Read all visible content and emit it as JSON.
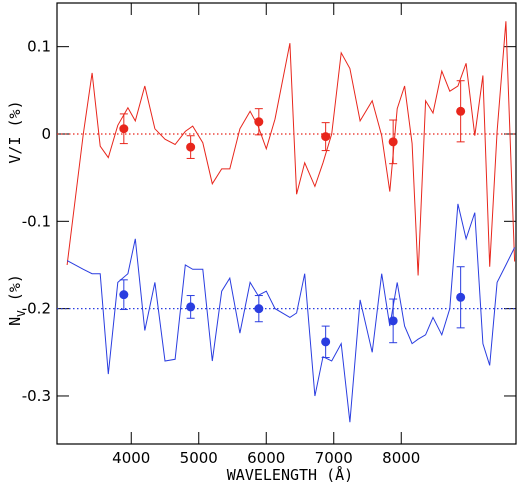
{
  "chart_data": {
    "type": "line",
    "xlabel": "WAVELENGTH (Å)",
    "ylabels": [
      {
        "text": "V/I (%)"
      },
      {
        "text": "N",
        "sub": "V",
        "rest": " (%)"
      }
    ],
    "xlim": [
      2900,
      9700
    ],
    "ylim": [
      -0.355,
      0.15
    ],
    "xticks": [
      4000,
      5000,
      6000,
      7000,
      8000
    ],
    "yticks": [
      0.1,
      0,
      -0.1,
      -0.2,
      -0.3
    ],
    "x": [
      3050,
      3290,
      3420,
      3540,
      3660,
      3800,
      3950,
      4060,
      4200,
      4350,
      4500,
      4650,
      4800,
      4910,
      5060,
      5200,
      5340,
      5460,
      5610,
      5760,
      5880,
      6000,
      6130,
      6350,
      6450,
      6570,
      6720,
      6840,
      6970,
      7110,
      7240,
      7390,
      7570,
      7710,
      7830,
      7940,
      8050,
      8160,
      8250,
      8360,
      8470,
      8600,
      8720,
      8840,
      8960,
      9090,
      9210,
      9310,
      9420,
      9550,
      9680
    ],
    "series": [
      {
        "color": "#e8261c",
        "values": [
          -0.15,
          0,
          0.07,
          -0.014,
          -0.027,
          0.01,
          0.03,
          0.015,
          0.055,
          0.006,
          -0.006,
          -0.012,
          0.003,
          0.009,
          -0.01,
          -0.057,
          -0.04,
          -0.04,
          0.006,
          0.026,
          0.009,
          -0.017,
          0.017,
          0.104,
          -0.069,
          -0.033,
          -0.06,
          -0.033,
          0,
          0.093,
          0.075,
          0.015,
          0.038,
          -0.002,
          -0.066,
          0.029,
          0.055,
          -0.011,
          -0.162,
          0.038,
          0.024,
          0.072,
          0.049,
          0.055,
          0.081,
          -0.002,
          0.067,
          -0.152,
          0.003,
          0.129,
          -0.146
        ]
      },
      {
        "color": "#2a3de0",
        "values": [
          -0.145,
          -0.155,
          -0.16,
          -0.16,
          -0.275,
          -0.17,
          -0.16,
          -0.12,
          -0.225,
          -0.17,
          -0.26,
          -0.258,
          -0.15,
          -0.155,
          -0.155,
          -0.26,
          -0.18,
          -0.165,
          -0.228,
          -0.17,
          -0.185,
          -0.18,
          -0.2,
          -0.21,
          -0.205,
          -0.16,
          -0.3,
          -0.255,
          -0.26,
          -0.24,
          -0.33,
          -0.19,
          -0.25,
          -0.16,
          -0.22,
          -0.17,
          -0.22,
          -0.24,
          -0.235,
          -0.23,
          -0.21,
          -0.23,
          -0.2,
          -0.08,
          -0.12,
          -0.09,
          -0.24,
          -0.265,
          -0.17,
          -0.15,
          -0.13
        ]
      }
    ],
    "points": [
      {
        "color": "#e8261c",
        "x": [
          3890,
          4880,
          5890,
          6880,
          7880,
          8880
        ],
        "values": [
          0.006,
          -0.015,
          0.014,
          -0.003,
          -0.009,
          0.026
        ],
        "errors": [
          0.017,
          0.013,
          0.015,
          0.016,
          0.025,
          0.035
        ]
      },
      {
        "color": "#2a3de0",
        "x": [
          3890,
          4880,
          5890,
          6880,
          7880,
          8880
        ],
        "values": [
          -0.184,
          -0.198,
          -0.2,
          -0.238,
          -0.214,
          -0.187
        ],
        "errors": [
          0.017,
          0.013,
          0.015,
          0.018,
          0.025,
          0.035
        ]
      }
    ],
    "hlines": [
      {
        "value": 0,
        "color": "#e8261c"
      },
      {
        "value": -0.2,
        "color": "#2a3de0"
      }
    ]
  }
}
